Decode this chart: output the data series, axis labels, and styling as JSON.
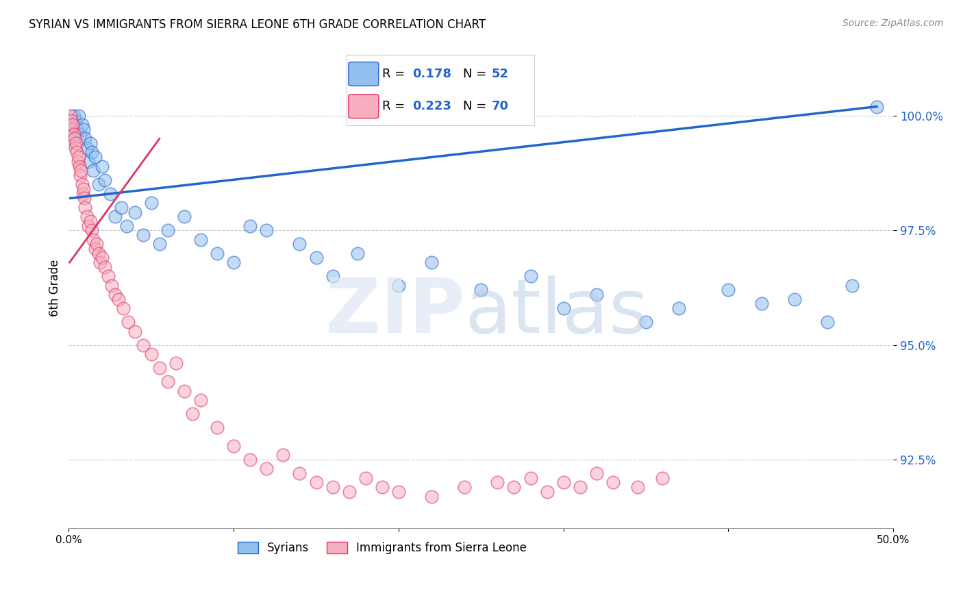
{
  "title": "SYRIAN VS IMMIGRANTS FROM SIERRA LEONE 6TH GRADE CORRELATION CHART",
  "source": "Source: ZipAtlas.com",
  "ylabel": "6th Grade",
  "xlim": [
    0.0,
    50.0
  ],
  "ylim": [
    91.0,
    101.5
  ],
  "yticks": [
    92.5,
    95.0,
    97.5,
    100.0
  ],
  "ytick_labels": [
    "92.5%",
    "95.0%",
    "97.5%",
    "100.0%"
  ],
  "color_syrians": "#92bfed",
  "color_sierra": "#f7afc0",
  "trendline_color_syrians": "#2266cc",
  "trendline_color_sierra": "#dd3366",
  "background_color": "#ffffff",
  "syrians_x": [
    0.1,
    0.2,
    0.3,
    0.4,
    0.5,
    0.6,
    0.7,
    0.8,
    0.9,
    1.0,
    1.1,
    1.2,
    1.3,
    1.4,
    1.5,
    1.6,
    1.8,
    2.0,
    2.2,
    2.5,
    2.8,
    3.2,
    3.5,
    4.0,
    4.5,
    5.0,
    5.5,
    6.0,
    7.0,
    8.0,
    9.0,
    10.0,
    11.0,
    12.0,
    14.0,
    15.0,
    16.0,
    17.5,
    20.0,
    22.0,
    25.0,
    28.0,
    30.0,
    32.0,
    35.0,
    37.0,
    40.0,
    42.0,
    44.0,
    46.0,
    47.5,
    49.0
  ],
  "syrians_y": [
    99.5,
    99.8,
    100.0,
    99.9,
    99.7,
    100.0,
    99.6,
    99.8,
    99.7,
    99.5,
    99.3,
    99.0,
    99.4,
    99.2,
    98.8,
    99.1,
    98.5,
    98.9,
    98.6,
    98.3,
    97.8,
    98.0,
    97.6,
    97.9,
    97.4,
    98.1,
    97.2,
    97.5,
    97.8,
    97.3,
    97.0,
    96.8,
    97.6,
    97.5,
    97.2,
    96.9,
    96.5,
    97.0,
    96.3,
    96.8,
    96.2,
    96.5,
    95.8,
    96.1,
    95.5,
    95.8,
    96.2,
    95.9,
    96.0,
    95.5,
    96.3,
    100.2
  ],
  "sierra_x": [
    0.05,
    0.1,
    0.15,
    0.2,
    0.25,
    0.3,
    0.35,
    0.4,
    0.45,
    0.5,
    0.55,
    0.6,
    0.65,
    0.7,
    0.75,
    0.8,
    0.85,
    0.9,
    0.95,
    1.0,
    1.1,
    1.2,
    1.3,
    1.4,
    1.5,
    1.6,
    1.7,
    1.8,
    1.9,
    2.0,
    2.2,
    2.4,
    2.6,
    2.8,
    3.0,
    3.3,
    3.6,
    4.0,
    4.5,
    5.0,
    5.5,
    6.0,
    6.5,
    7.0,
    7.5,
    8.0,
    9.0,
    10.0,
    11.0,
    12.0,
    13.0,
    14.0,
    15.0,
    16.0,
    17.0,
    18.0,
    19.0,
    20.0,
    22.0,
    24.0,
    26.0,
    27.0,
    28.0,
    29.0,
    30.0,
    31.0,
    32.0,
    33.0,
    34.5,
    36.0
  ],
  "sierra_y": [
    99.8,
    100.0,
    99.9,
    99.7,
    99.8,
    99.6,
    99.5,
    99.3,
    99.4,
    99.2,
    99.0,
    99.1,
    98.9,
    98.7,
    98.8,
    98.5,
    98.3,
    98.4,
    98.2,
    98.0,
    97.8,
    97.6,
    97.7,
    97.5,
    97.3,
    97.1,
    97.2,
    97.0,
    96.8,
    96.9,
    96.7,
    96.5,
    96.3,
    96.1,
    96.0,
    95.8,
    95.5,
    95.3,
    95.0,
    94.8,
    94.5,
    94.2,
    94.6,
    94.0,
    93.5,
    93.8,
    93.2,
    92.8,
    92.5,
    92.3,
    92.6,
    92.2,
    92.0,
    91.9,
    91.8,
    92.1,
    91.9,
    91.8,
    91.7,
    91.9,
    92.0,
    91.9,
    92.1,
    91.8,
    92.0,
    91.9,
    92.2,
    92.0,
    91.9,
    92.1
  ],
  "syrians_trend_x": [
    0.1,
    49.0
  ],
  "syrians_trend_y": [
    98.2,
    100.2
  ],
  "sierra_trend_x": [
    0.05,
    5.5
  ],
  "sierra_trend_y": [
    96.8,
    99.5
  ]
}
